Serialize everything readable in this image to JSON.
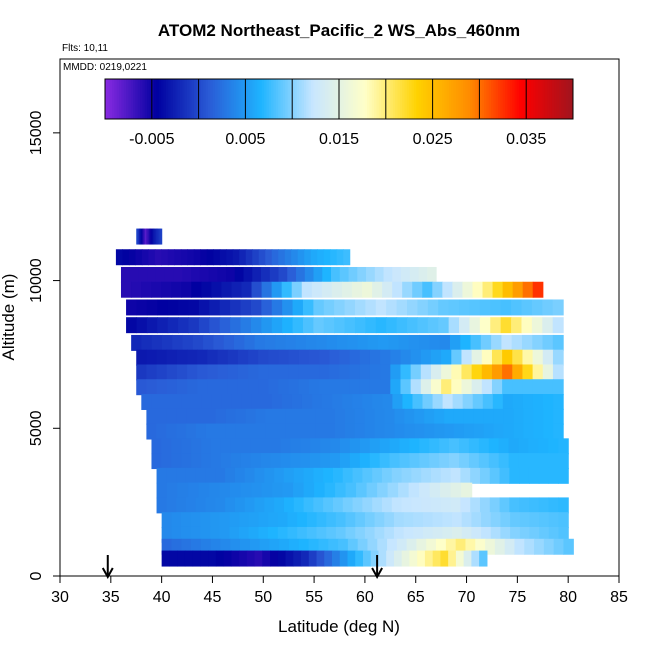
{
  "chart_data": {
    "type": "heatmap",
    "title": "ATOM2 Northeast_Pacific_2 WS_Abs_460nm",
    "notes": [
      "Flts: 10,11",
      "MMDD: 0219,0221"
    ],
    "xlabel": "Latitude (deg N)",
    "ylabel": "Altitude (m)",
    "xlim": [
      30,
      85
    ],
    "ylim": [
      0,
      17500
    ],
    "x_ticks": [
      30,
      35,
      40,
      45,
      50,
      55,
      60,
      65,
      70,
      75,
      80,
      85
    ],
    "y_ticks": [
      0,
      5000,
      10000,
      15000
    ],
    "colorbar": {
      "range": [
        -0.01,
        0.04
      ],
      "ticks": [
        -0.005,
        0.005,
        0.015,
        0.025,
        0.035
      ],
      "tick_labels": [
        "-0.005",
        "0.005",
        "0.015",
        "0.025",
        "0.035"
      ],
      "colors": [
        "#8a2be2",
        "#0000a0",
        "#2a5bd6",
        "#1eb4ff",
        "#c8e6ff",
        "#ffffc8",
        "#ffd200",
        "#ff8c00",
        "#ff0000",
        "#a0141e"
      ]
    },
    "arrows_at_latitude": [
      34.7,
      61.2
    ],
    "layers": [
      {
        "alt": 11500,
        "x0": 37.5,
        "x1": 40.0,
        "vals": [
          0.0,
          -0.008,
          -0.003,
          0.0
        ]
      },
      {
        "alt": 10800,
        "x0": 35.5,
        "x1": 58.5,
        "vals": [
          -0.004,
          -0.006,
          -0.005,
          -0.003,
          0.002,
          0.006,
          0.008
        ]
      },
      {
        "alt": 10200,
        "x0": 36.0,
        "x1": 67.0,
        "vals": [
          -0.006,
          -0.006,
          -0.005,
          0.0,
          0.008,
          0.012,
          0.015
        ]
      },
      {
        "alt": 9700,
        "x0": 36.0,
        "x1": 77.5,
        "vals": [
          -0.006,
          -0.005,
          -0.002,
          0.012,
          0.016,
          0.008,
          0.02,
          0.035
        ]
      },
      {
        "alt": 9100,
        "x0": 36.5,
        "x1": 79.5,
        "vals": [
          -0.005,
          -0.004,
          0.0,
          0.009,
          0.012,
          0.009,
          0.008,
          0.01
        ]
      },
      {
        "alt": 8500,
        "x0": 36.5,
        "x1": 79.5,
        "vals": [
          -0.004,
          -0.001,
          0.004,
          0.009,
          0.007,
          0.009,
          0.022,
          0.01
        ]
      },
      {
        "alt": 7900,
        "x0": 37.0,
        "x1": 79.5,
        "vals": [
          -0.002,
          0.0,
          0.003,
          0.004,
          0.005,
          0.004,
          0.012,
          0.008
        ]
      },
      {
        "alt": 7400,
        "x0": 37.5,
        "x1": 79.5,
        "vals": [
          -0.003,
          -0.002,
          0.0,
          0.001,
          0.003,
          0.006,
          0.024,
          0.008
        ]
      },
      {
        "alt": 6900,
        "x0": 37.5,
        "x1": 79.5,
        "vals": [
          -0.001,
          0.001,
          0.002,
          0.002,
          0.003,
          0.016,
          0.03,
          0.008
        ]
      },
      {
        "alt": 6400,
        "x0": 37.5,
        "x1": 79.5,
        "vals": [
          0.001,
          0.002,
          0.002,
          0.003,
          0.003,
          0.02,
          0.008,
          0.008
        ]
      },
      {
        "alt": 5900,
        "x0": 38.0,
        "x1": 79.5,
        "vals": [
          0.002,
          0.002,
          0.002,
          0.003,
          0.004,
          0.012,
          0.006,
          0.007
        ]
      },
      {
        "alt": 5400,
        "x0": 38.5,
        "x1": 79.5,
        "vals": [
          0.002,
          0.002,
          0.003,
          0.003,
          0.004,
          0.006,
          0.006,
          0.007
        ]
      },
      {
        "alt": 4900,
        "x0": 38.5,
        "x1": 79.5,
        "vals": [
          0.002,
          0.003,
          0.003,
          0.003,
          0.004,
          0.005,
          0.006,
          0.007
        ]
      },
      {
        "alt": 4400,
        "x0": 39.0,
        "x1": 80.0,
        "vals": [
          0.002,
          0.003,
          0.003,
          0.004,
          0.006,
          0.008,
          0.006,
          0.007
        ]
      },
      {
        "alt": 3900,
        "x0": 39.0,
        "x1": 80.0,
        "vals": [
          0.002,
          0.003,
          0.004,
          0.005,
          0.008,
          0.01,
          0.007,
          0.007
        ]
      },
      {
        "alt": 3400,
        "x0": 39.5,
        "x1": 80.0,
        "vals": [
          0.003,
          0.003,
          0.005,
          0.007,
          0.01,
          0.012,
          0.007,
          0.007
        ]
      },
      {
        "alt": 2900,
        "x0": 39.5,
        "x1": 70.5,
        "vals": [
          0.003,
          0.004,
          0.005,
          0.008,
          0.012,
          0.016
        ]
      },
      {
        "alt": 2400,
        "x0": 39.5,
        "x1": 80.0,
        "vals": [
          0.003,
          0.004,
          0.006,
          0.009,
          0.012,
          0.013,
          0.008,
          0.007
        ]
      },
      {
        "alt": 1900,
        "x0": 40.0,
        "x1": 80.0,
        "vals": [
          0.004,
          0.005,
          0.006,
          0.008,
          0.011,
          0.012,
          0.009,
          0.008
        ]
      },
      {
        "alt": 1400,
        "x0": 40.0,
        "x1": 80.0,
        "vals": [
          0.004,
          0.005,
          0.007,
          0.009,
          0.012,
          0.014,
          0.01,
          0.008
        ]
      },
      {
        "alt": 1000,
        "x0": 40.0,
        "x1": 80.5,
        "vals": [
          0.002,
          0.004,
          0.006,
          0.008,
          0.013,
          0.02,
          0.012,
          0.008
        ]
      },
      {
        "alt": 600,
        "x0": 40.0,
        "x1": 72.0,
        "vals": [
          -0.004,
          -0.004,
          -0.006,
          -0.002,
          0.006,
          0.014,
          0.022,
          0.006
        ]
      }
    ]
  }
}
